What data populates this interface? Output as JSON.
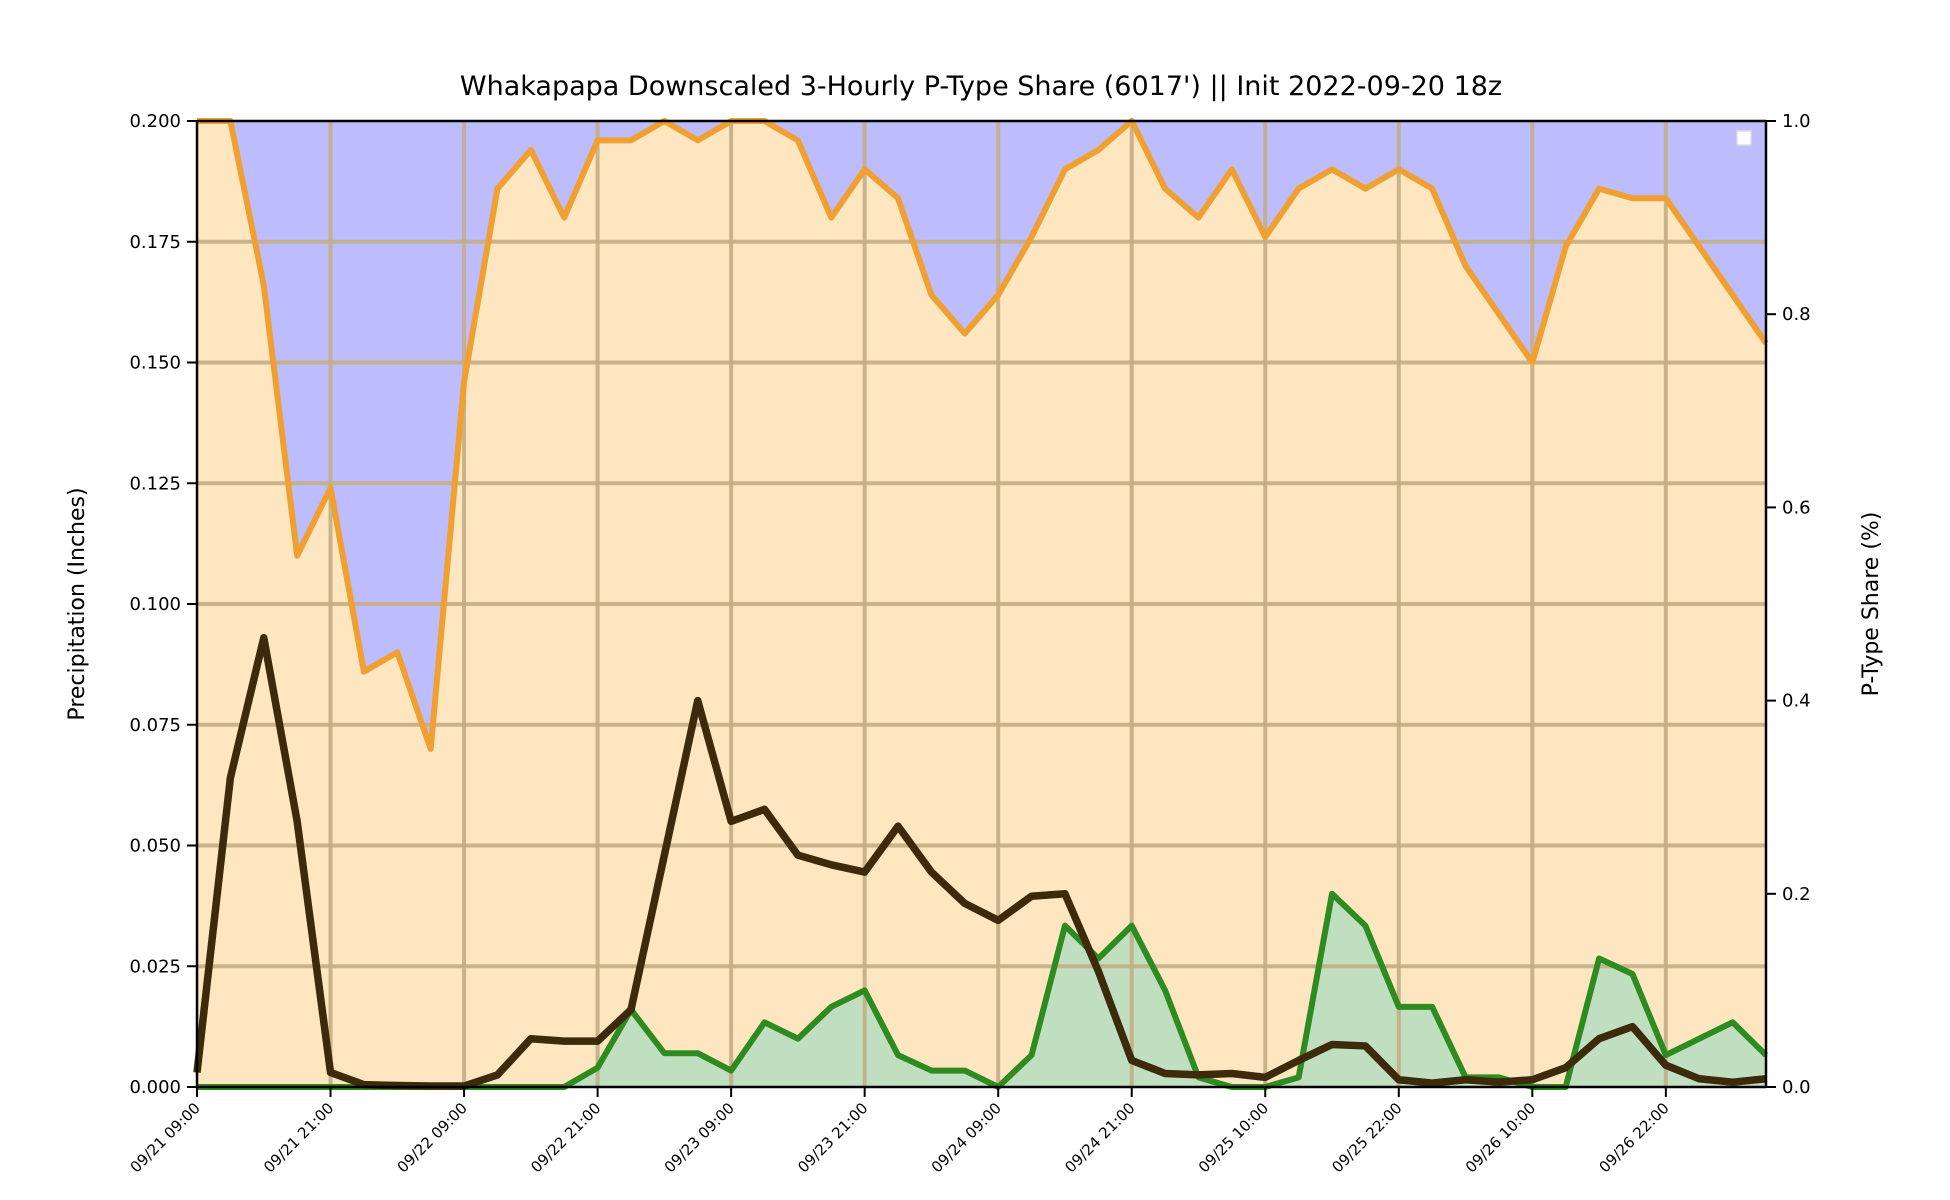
{
  "chart_data": {
    "type": "area",
    "title": "Whakapapa Downscaled 3-Hourly P-Type Share (6017') || Init 2022-09-20 18z",
    "ylabel_left": "Precipitation (Inches)",
    "ylabel_right": "P-Type Share (%)",
    "ylim_left": [
      0,
      0.2
    ],
    "ylim_right": [
      0,
      1.0
    ],
    "yticks_left": [
      "0.000",
      "0.025",
      "0.050",
      "0.075",
      "0.100",
      "0.125",
      "0.150",
      "0.175",
      "0.200"
    ],
    "yticks_right": [
      "0.0",
      "0.2",
      "0.4",
      "0.6",
      "0.8",
      "1.0"
    ],
    "xticks": [
      "09/21 09:00",
      "09/21 21:00",
      "09/22 09:00",
      "09/22 21:00",
      "09/23 09:00",
      "09/23 21:00",
      "09/24 09:00",
      "09/24 21:00",
      "09/25 10:00",
      "09/25 22:00",
      "09/26 10:00",
      "09/26 22:00"
    ],
    "xtick_index": [
      0,
      4,
      8,
      12,
      16,
      20,
      24,
      28,
      32,
      36,
      40,
      44
    ],
    "n_steps": 48,
    "grid": true,
    "legend": "top-right (empty)",
    "colors": {
      "snow_region": "#bdbdfd",
      "mix_region": "#fde6c0",
      "snow_share_line": "#f0a030",
      "rain_share_line": "#2e8b20",
      "rain_share_fill": "#c0dfc0",
      "precip_line": "#3d2a0a",
      "grid_lines": "#c3ad85"
    },
    "series": [
      {
        "axis": "left",
        "values": [
          0.003,
          0.064,
          0.093,
          0.055,
          0.003,
          0.0005,
          0.0003,
          0.0002,
          0.0002,
          0.0025,
          0.01,
          0.0095,
          0.0095,
          0.016,
          0.048,
          0.08,
          0.055,
          0.0575,
          0.048,
          0.046,
          0.0445,
          0.054,
          0.0445,
          0.038,
          0.0345,
          0.0395,
          0.04,
          0.024,
          0.0055,
          0.0028,
          0.0025,
          0.0028,
          0.002,
          0.0055,
          0.0088,
          0.0085,
          0.0015,
          0.0008,
          0.0015,
          0.001,
          0.0015,
          0.004,
          0.01,
          0.0125,
          0.0045,
          0.0017,
          0.001,
          0.0017
        ]
      },
      {
        "axis": "right",
        "values": [
          1.0,
          1.0,
          0.83,
          0.55,
          0.62,
          0.43,
          0.45,
          0.35,
          0.73,
          0.93,
          0.97,
          0.9,
          0.98,
          0.98,
          1.0,
          0.98,
          1.0,
          1.0,
          0.98,
          0.9,
          0.95,
          0.92,
          0.82,
          0.78,
          0.82,
          0.88,
          0.95,
          0.97,
          1.0,
          0.93,
          0.9,
          0.95,
          0.88,
          0.93,
          0.95,
          0.93,
          0.95,
          0.93,
          0.85,
          0.8,
          0.75,
          0.87,
          0.93,
          0.92,
          0.92,
          0.87,
          0.82,
          0.77
        ]
      },
      {
        "axis": "right",
        "values": [
          0.0,
          0.0,
          0.0,
          0.0,
          0.0,
          0.0,
          0.0,
          0.0,
          0.0,
          0.0,
          0.0,
          0.0,
          0.02,
          0.08,
          0.035,
          0.035,
          0.017,
          0.067,
          0.05,
          0.083,
          0.1,
          0.033,
          0.017,
          0.017,
          0.0,
          0.033,
          0.167,
          0.133,
          0.167,
          0.1,
          0.01,
          0.0,
          0.0,
          0.01,
          0.2,
          0.167,
          0.083,
          0.083,
          0.01,
          0.01,
          0.0,
          0.0,
          0.133,
          0.117,
          0.033,
          0.05,
          0.067,
          0.033
        ]
      }
    ]
  }
}
